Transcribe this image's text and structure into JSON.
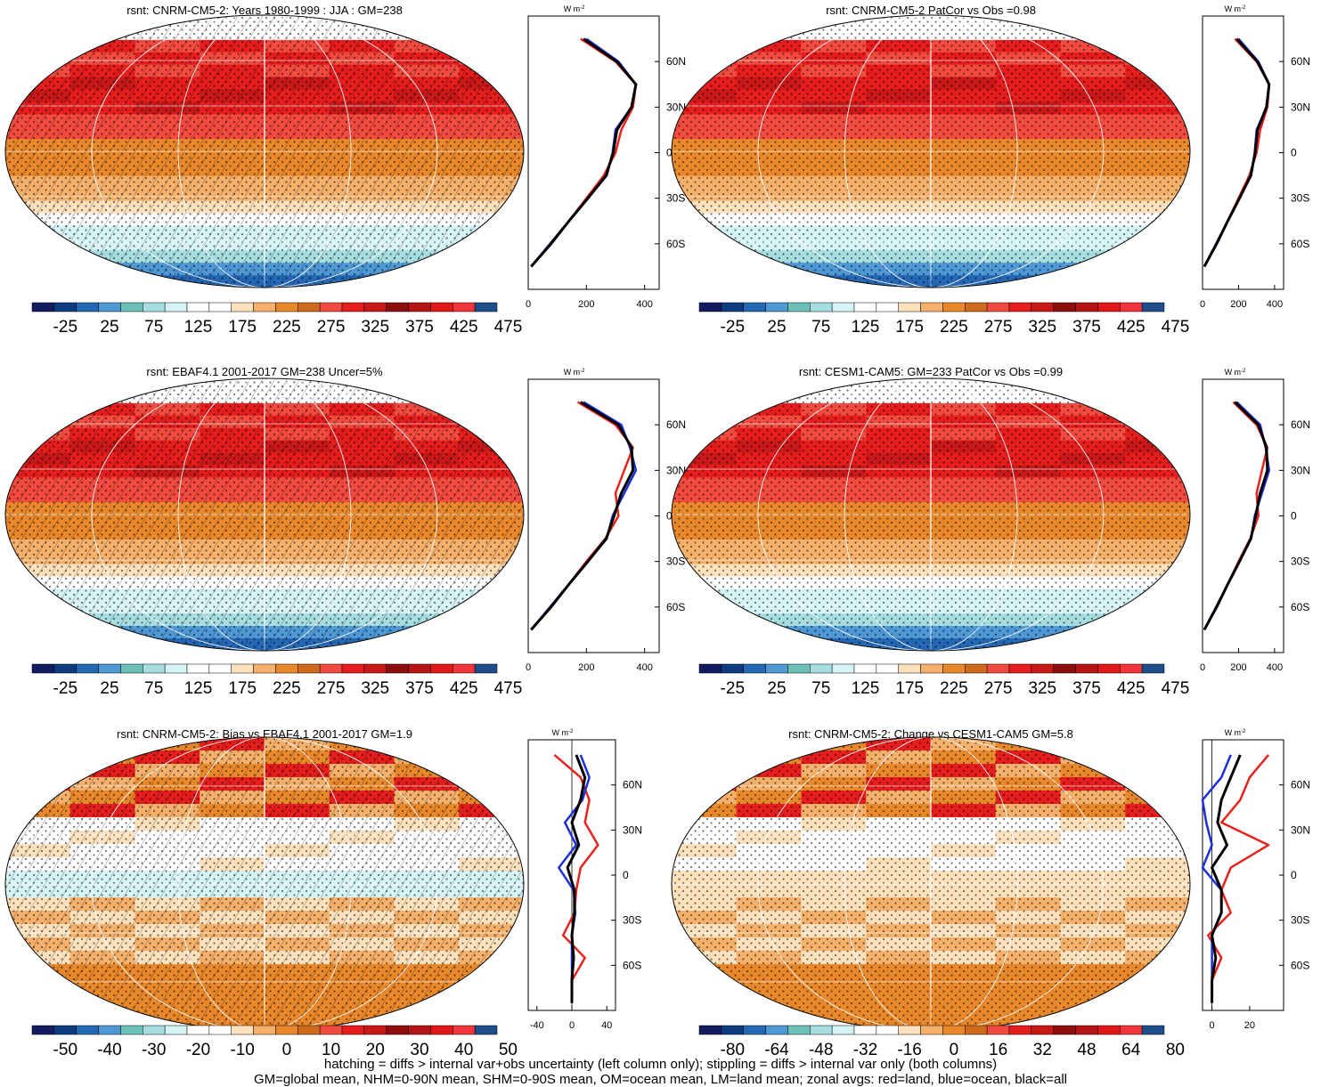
{
  "zonal_unit": "W m",
  "zonal_unit_exp": "-2",
  "lat_labels": [
    "60N",
    "30N",
    "0",
    "30S",
    "60S"
  ],
  "panels": [
    {
      "title": "rsnt: CNRM-CM5-2: Years 1980-1999 : JJA : GM=238",
      "type": "abs",
      "zonal_ticks": [
        "0",
        "200",
        "400"
      ]
    },
    {
      "title": "rsnt: CNRM-CM5-2 PatCor vs Obs =0.98",
      "type": "abs",
      "zonal_ticks": [
        "0",
        "200",
        "400"
      ]
    },
    {
      "title": "rsnt: EBAF4.1 2001-2017 GM=238 Uncer=5%",
      "type": "abs",
      "zonal_ticks": [
        "0",
        "200",
        "400"
      ]
    },
    {
      "title": "rsnt: CESM1-CAM5: GM=233 PatCor vs Obs =0.99",
      "type": "abs",
      "zonal_ticks": [
        "0",
        "200",
        "400"
      ]
    },
    {
      "title": "rsnt: CNRM-CM5-2: Bias vs EBAF4.1 2001-2017 GM=1.9",
      "type": "diff",
      "zonal_ticks": [
        "-40",
        "0",
        "40"
      ]
    },
    {
      "title": "rsnt: CNRM-CM5-2: Change vs CESM1-CAM5 GM=5.8",
      "type": "diff2",
      "zonal_ticks": [
        "0",
        "20"
      ]
    }
  ],
  "colorbars": {
    "abs": [
      "-25",
      "25",
      "75",
      "125",
      "175",
      "225",
      "275",
      "325",
      "375",
      "425",
      "475"
    ],
    "diff": [
      "-50",
      "-40",
      "-30",
      "-20",
      "-10",
      "0",
      "10",
      "20",
      "30",
      "40",
      "50"
    ],
    "diff2": [
      "-80",
      "-64",
      "-48",
      "-32",
      "-16",
      "0",
      "16",
      "32",
      "48",
      "64",
      "80"
    ]
  },
  "colors": {
    "abs": [
      "#121c5e",
      "#0d3b80",
      "#2467b4",
      "#4f98d6",
      "#6cc0b8",
      "#a6dde0",
      "#d6f4f6",
      "#ffffff",
      "#ffffff",
      "#fde1bc",
      "#f5b16b",
      "#e8882b",
      "#cf6a1d",
      "#f34a3f",
      "#e51d1d",
      "#c91818",
      "#8e0d0d",
      "#b51515",
      "#e01818",
      "#f2353a",
      "#1e4e8c"
    ],
    "diff": [
      "#121c5e",
      "#0d3b80",
      "#2467b4",
      "#4f98d6",
      "#6cc0b8",
      "#a6dde0",
      "#d6f4f6",
      "#ffffff",
      "#ffffff",
      "#fde1bc",
      "#f5b16b",
      "#e8882b",
      "#cf6a1d",
      "#f34a3f",
      "#e51d1d",
      "#c91818",
      "#8e0d0d",
      "#b51515",
      "#e01818",
      "#f2353a",
      "#1e4e8c"
    ],
    "land": "#e8231e",
    "ocean": "#1c2fd8",
    "all": "#000000"
  },
  "footer": [
    "hatching = diffs > internal var+obs uncertainty (left column only); stippling = diffs > internal var only (both columns)",
    "GM=global mean, NHM=0-90N mean, SHM=0-90S mean, OM=ocean mean, LM=land mean; zonal avgs: red=land, blue=ocean, black=all"
  ],
  "chart_data": [
    {
      "type": "heatmap",
      "title": "rsnt: CNRM-CM5-2: Years 1980-1999 : JJA : GM=238",
      "colorbar": [
        "-25",
        "25",
        "75",
        "125",
        "175",
        "225",
        "275",
        "325",
        "375",
        "425",
        "475"
      ],
      "zonal": {
        "lat": [
          75,
          60,
          45,
          30,
          15,
          0,
          -15,
          -30,
          -45,
          -60,
          -75
        ],
        "land": [
          180,
          300,
          370,
          360,
          320,
          300,
          260,
          200,
          140,
          80,
          10
        ],
        "ocean": [
          200,
          310,
          370,
          355,
          300,
          290,
          270,
          205,
          140,
          75,
          10
        ],
        "all": [
          190,
          305,
          370,
          355,
          305,
          292,
          268,
          205,
          140,
          78,
          10
        ],
        "xlim": [
          0,
          450
        ]
      }
    },
    {
      "type": "heatmap",
      "title": "rsnt: CNRM-CM5-2 PatCor vs Obs =0.98",
      "colorbar": [
        "-25",
        "25",
        "75",
        "125",
        "175",
        "225",
        "275",
        "325",
        "375",
        "425",
        "475"
      ],
      "zonal": {
        "lat": [
          75,
          60,
          45,
          30,
          15,
          0,
          -15,
          -30,
          -45,
          -60,
          -75
        ],
        "land": [
          180,
          300,
          370,
          360,
          320,
          300,
          260,
          200,
          140,
          80,
          10
        ],
        "ocean": [
          200,
          310,
          370,
          355,
          300,
          290,
          270,
          205,
          140,
          75,
          10
        ],
        "all": [
          190,
          305,
          370,
          355,
          305,
          292,
          268,
          205,
          140,
          78,
          10
        ],
        "xlim": [
          0,
          450
        ]
      }
    },
    {
      "type": "heatmap",
      "title": "rsnt: EBAF4.1 2001-2017 GM=238 Uncer=5%",
      "colorbar": [
        "-25",
        "25",
        "75",
        "125",
        "175",
        "225",
        "275",
        "325",
        "375",
        "425",
        "475"
      ],
      "zonal": {
        "lat": [
          75,
          60,
          45,
          30,
          15,
          0,
          -15,
          -30,
          -45,
          -60,
          -75
        ],
        "land": [
          170,
          300,
          360,
          330,
          300,
          310,
          265,
          200,
          140,
          80,
          10
        ],
        "ocean": [
          190,
          320,
          350,
          370,
          330,
          290,
          270,
          205,
          140,
          75,
          10
        ],
        "all": [
          180,
          310,
          355,
          360,
          320,
          295,
          268,
          205,
          140,
          78,
          10
        ],
        "xlim": [
          0,
          450
        ]
      }
    },
    {
      "type": "heatmap",
      "title": "rsnt: CESM1-CAM5: GM=233 PatCor vs Obs =0.99",
      "colorbar": [
        "-25",
        "25",
        "75",
        "125",
        "175",
        "225",
        "275",
        "325",
        "375",
        "425",
        "475"
      ],
      "zonal": {
        "lat": [
          75,
          60,
          45,
          30,
          15,
          0,
          -15,
          -30,
          -45,
          -60,
          -75
        ],
        "land": [
          170,
          300,
          360,
          330,
          300,
          310,
          265,
          200,
          140,
          80,
          10
        ],
        "ocean": [
          190,
          320,
          350,
          370,
          330,
          290,
          270,
          205,
          140,
          75,
          10
        ],
        "all": [
          180,
          310,
          355,
          360,
          320,
          295,
          268,
          205,
          140,
          78,
          10
        ],
        "xlim": [
          0,
          450
        ]
      }
    },
    {
      "type": "heatmap",
      "title": "rsnt: CNRM-CM5-2: Bias vs EBAF4.1 2001-2017 GM=1.9",
      "colorbar": [
        "-50",
        "-40",
        "-30",
        "-20",
        "-10",
        "0",
        "10",
        "20",
        "30",
        "40",
        "50"
      ],
      "zonal": {
        "lat": [
          80,
          65,
          50,
          35,
          20,
          5,
          -10,
          -25,
          -40,
          -55,
          -70,
          -85
        ],
        "land": [
          -20,
          10,
          20,
          15,
          30,
          10,
          5,
          3,
          -10,
          15,
          0,
          0
        ],
        "ocean": [
          10,
          20,
          12,
          -8,
          5,
          -15,
          2,
          4,
          0,
          0,
          0,
          0
        ],
        "all": [
          5,
          15,
          10,
          0,
          8,
          -5,
          3,
          3,
          0,
          2,
          0,
          0
        ],
        "xlim": [
          -50,
          50
        ]
      }
    },
    {
      "type": "heatmap",
      "title": "rsnt: CNRM-CM5-2: Change vs CESM1-CAM5 GM=5.8",
      "colorbar": [
        "-80",
        "-64",
        "-48",
        "-32",
        "-16",
        "0",
        "16",
        "32",
        "48",
        "64",
        "80"
      ],
      "zonal": {
        "lat": [
          80,
          65,
          50,
          35,
          20,
          5,
          -10,
          -25,
          -40,
          -55,
          -70,
          -85
        ],
        "land": [
          30,
          20,
          15,
          5,
          30,
          10,
          5,
          10,
          -2,
          5,
          0,
          0
        ],
        "ocean": [
          10,
          5,
          -5,
          -3,
          0,
          -5,
          5,
          5,
          0,
          0,
          0,
          0
        ],
        "all": [
          15,
          10,
          5,
          3,
          8,
          0,
          5,
          5,
          0,
          2,
          0,
          0
        ],
        "xlim": [
          -5,
          38
        ]
      }
    }
  ]
}
